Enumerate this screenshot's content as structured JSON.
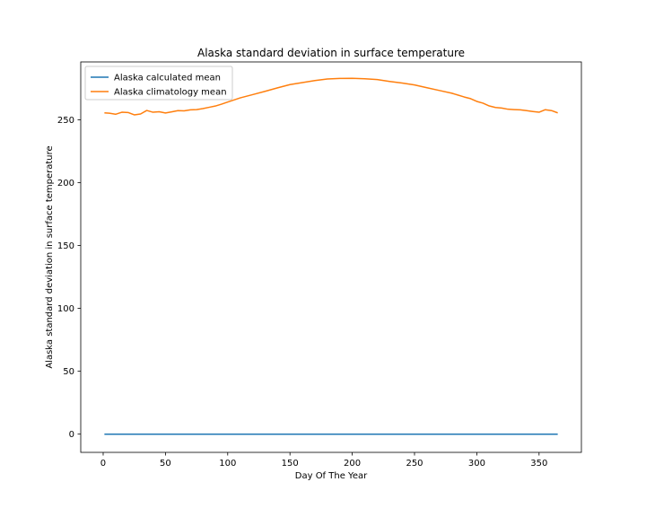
{
  "chart_data": {
    "type": "line",
    "title": "Alaska standard deviation in surface temperature",
    "xlabel": "Day Of The Year",
    "ylabel": "Alaska standard deviation in surface temperature",
    "xlim": [
      -18,
      384
    ],
    "ylim": [
      -14.5,
      296
    ],
    "xticks": [
      0,
      50,
      100,
      150,
      200,
      250,
      300,
      350
    ],
    "yticks": [
      0,
      50,
      100,
      150,
      200,
      250
    ],
    "grid": false,
    "legend_position": "upper-left",
    "series": [
      {
        "name": "Alaska calculated mean",
        "color": "#1f77b4",
        "x": [
          1,
          365
        ],
        "y": [
          0,
          0
        ]
      },
      {
        "name": "Alaska climatology mean",
        "color": "#ff7f0e",
        "x": [
          1,
          5,
          10,
          15,
          20,
          25,
          30,
          35,
          40,
          45,
          50,
          55,
          60,
          65,
          70,
          75,
          80,
          85,
          90,
          95,
          100,
          110,
          120,
          130,
          140,
          150,
          160,
          170,
          180,
          190,
          200,
          210,
          220,
          230,
          240,
          250,
          260,
          270,
          280,
          290,
          295,
          300,
          305,
          310,
          315,
          320,
          325,
          330,
          335,
          340,
          345,
          350,
          355,
          360,
          365
        ],
        "y": [
          255.5,
          255.2,
          254.4,
          256.0,
          255.8,
          253.9,
          254.6,
          257.4,
          256.0,
          256.4,
          255.4,
          256.3,
          257.3,
          257.1,
          257.9,
          258.1,
          258.9,
          259.9,
          260.9,
          262.4,
          264.1,
          267.4,
          270.0,
          272.6,
          275.4,
          278.0,
          279.6,
          281.2,
          282.4,
          282.9,
          283.0,
          282.6,
          282.0,
          280.5,
          279.2,
          277.7,
          275.5,
          273.3,
          271.1,
          268.1,
          266.8,
          264.6,
          263.2,
          261.0,
          259.8,
          259.3,
          258.4,
          258.1,
          257.9,
          257.3,
          256.6,
          256.0,
          258.0,
          257.3,
          255.5
        ]
      }
    ]
  }
}
